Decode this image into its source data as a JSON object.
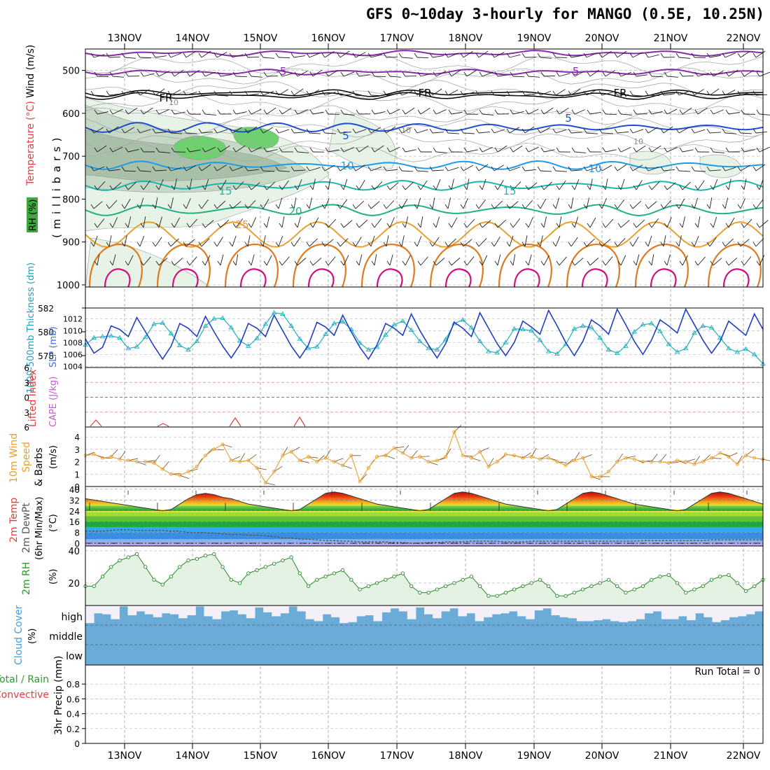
{
  "title": "GFS 0~10day 3-hourly for MANGO (0.5E, 10.25N)",
  "date_labels": [
    "13NOV",
    "14NOV",
    "15NOV",
    "16NOV",
    "17NOV",
    "18NOV",
    "19NOV",
    "20NOV",
    "21NOV",
    "22NOV"
  ],
  "run_total": "Run Total = 0",
  "colors": {
    "thickness": "#2040c0",
    "slp": "#20b0c0",
    "wind": "#e8a030",
    "rh_line": "#2a8a2a",
    "cloud": "#6aabd8",
    "temp": "#e04040",
    "dew": "#555555"
  },
  "chart_data": [
    {
      "type": "heatmap",
      "panel": "sounding",
      "ylabels": [
        "Wind (m/s)",
        "Temperature (°C)",
        "RH (%)",
        "( m i l l i b a r s )"
      ],
      "yticks": [
        500,
        600,
        700,
        800,
        900,
        1000
      ],
      "contour_labels": [
        "-5",
        "-5",
        "FR",
        "FR",
        "FR",
        "5",
        "5",
        "10",
        "10",
        "15",
        "15",
        "20",
        "25",
        "10",
        "10",
        "10"
      ]
    },
    {
      "type": "line",
      "panel": "thickness_slp",
      "ylabel_left": "1000-500mb Thickness (dm)",
      "ylabel_right": "SLP (mb)",
      "ylim_left": [
        577,
        582
      ],
      "yticks_left": [
        578,
        580,
        582
      ],
      "ylim_right": [
        1003.8,
        1013.8
      ],
      "yticks_right": [
        1004,
        1006,
        1008,
        1010,
        1012
      ],
      "series": [
        {
          "name": "1000-500mb Thickness (dm)",
          "values": [
            579.4,
            578.2,
            578.7,
            580.5,
            580.2,
            579.6,
            581.2,
            580.0,
            578.8,
            577.7,
            578.8,
            580.7,
            580.3,
            579.6,
            581.3,
            580.0,
            578.8,
            577.8,
            578.9,
            580.7,
            580.3,
            579.6,
            581.4,
            580.1,
            578.8,
            577.8,
            578.9,
            580.8,
            580.4,
            579.7,
            581.4,
            580.0,
            578.7,
            577.7,
            578.9,
            580.7,
            580.3,
            579.7,
            581.5,
            580.1,
            578.9,
            577.8,
            579.0,
            580.8,
            580.3,
            579.6,
            581.6,
            580.3,
            579.0,
            578.0,
            579.1,
            580.9,
            580.4,
            579.8,
            581.8,
            580.5,
            579.1,
            578.0,
            579.2,
            581.0,
            580.5,
            579.8,
            581.9,
            580.6,
            579.2,
            578.1,
            579.3,
            581.0,
            580.5,
            579.9,
            581.9,
            580.6,
            579.3,
            578.2,
            579.2,
            580.9,
            580.3,
            579.7,
            581.5,
            580.2
          ]
        },
        {
          "name": "SLP (mb)",
          "values": [
            1007.6,
            1008.8,
            1009.0,
            1009.1,
            1008.8,
            1007.0,
            1007.3,
            1008.9,
            1011.1,
            1011.3,
            1009.5,
            1007.5,
            1006.8,
            1008.2,
            1010.8,
            1012.0,
            1012.1,
            1010.5,
            1008.3,
            1007.4,
            1008.7,
            1011.1,
            1013.0,
            1012.8,
            1010.8,
            1008.6,
            1007.0,
            1007.3,
            1009.4,
            1011.2,
            1011.5,
            1010.2,
            1007.9,
            1006.8,
            1007.2,
            1009.3,
            1011.0,
            1011.6,
            1010.1,
            1008.2,
            1007.0,
            1006.8,
            1008.5,
            1011.2,
            1011.8,
            1010.5,
            1008.2,
            1006.5,
            1006.3,
            1008.0,
            1010.3,
            1010.2,
            1010.0,
            1008.4,
            1006.5,
            1006.1,
            1007.7,
            1010.3,
            1010.8,
            1010.5,
            1008.8,
            1006.8,
            1006.2,
            1007.4,
            1009.8,
            1011.0,
            1011.2,
            1009.9,
            1007.7,
            1006.4,
            1007.0,
            1009.6,
            1010.8,
            1010.5,
            1008.8,
            1007.0,
            1006.4,
            1006.9,
            1006.0,
            1004.4
          ]
        }
      ]
    },
    {
      "type": "line",
      "panel": "cape_li",
      "ylabel_left": "Lifted Index",
      "ylabel_right": "CAPE (J/kg)",
      "ylim": [
        -6,
        6
      ],
      "yticks": [
        -6,
        -3,
        0,
        3,
        6
      ],
      "tick_labels": [
        "6",
        "3",
        "0",
        "3",
        "6"
      ]
    },
    {
      "type": "line",
      "panel": "wind10m",
      "ylabel": "10m Wind Speed & Barbs (m/s)",
      "ylim": [
        0,
        4.8
      ],
      "yticks": [
        0,
        1,
        2,
        3,
        4
      ],
      "series": [
        {
          "name": "10m Wind Speed",
          "values": [
            2.5,
            2.6,
            2.3,
            2.4,
            2.2,
            2.1,
            2.0,
            2.0,
            1.9,
            1.4,
            1.0,
            0.9,
            1.2,
            1.6,
            2.5,
            3.0,
            3.4,
            2.1,
            2.0,
            2.1,
            1.5,
            0.3,
            1.2,
            2.5,
            2.8,
            2.1,
            2.4,
            2.0,
            2.3,
            2.0,
            1.7,
            2.5,
            0.4,
            1.5,
            2.4,
            2.5,
            3.1,
            2.7,
            2.3,
            2.4,
            2.0,
            2.1,
            2.4,
            4.4,
            2.5,
            2.3,
            2.8,
            1.6,
            2.0,
            2.6,
            2.5,
            2.3,
            2.4,
            2.2,
            2.3,
            2.0,
            1.7,
            2.1,
            2.3,
            0.8,
            0.8,
            1.2,
            2.0,
            2.3,
            2.2,
            2.0,
            2.0,
            2.0,
            1.9,
            2.1,
            2.0,
            1.8,
            2.0,
            2.3,
            2.7,
            2.4,
            1.8,
            2.5,
            2.3,
            2.2
          ]
        }
      ]
    },
    {
      "type": "area",
      "panel": "temp2m",
      "ylabel": "2m Temp 2m DewPt (6hr Min/Max) (°C)",
      "ylim": [
        -2,
        42
      ],
      "yticks": [
        0,
        8,
        16,
        24,
        32,
        40
      ],
      "series": [
        {
          "name": "2m Temp",
          "values": [
            33,
            32,
            31,
            30,
            29,
            28,
            27,
            26,
            25,
            24,
            25,
            29,
            33,
            36,
            37,
            36,
            34,
            33,
            31,
            29,
            28,
            27,
            26,
            25,
            24,
            25,
            29,
            33,
            37,
            38,
            37,
            35,
            33,
            31,
            29,
            28,
            27,
            26,
            25,
            24,
            25,
            29,
            33,
            37,
            38,
            37,
            35,
            33,
            31,
            29,
            28,
            27,
            26,
            25,
            24,
            25,
            29,
            33,
            37,
            38,
            37,
            35,
            33,
            31,
            29,
            28,
            27,
            26,
            25,
            24,
            25,
            29,
            33,
            37,
            38,
            37,
            35,
            33,
            31,
            29
          ]
        },
        {
          "name": "2m DewPt",
          "values": [
            9,
            9,
            9,
            9.5,
            10,
            10,
            9.5,
            9.5,
            9.5,
            9.5,
            9,
            9,
            8,
            8,
            8,
            7.5,
            7,
            6.5,
            6.5,
            6,
            6,
            5.5,
            5,
            4,
            4,
            3,
            3,
            2.5,
            2,
            2,
            1.5,
            1.5,
            1,
            1,
            1,
            1,
            0.5,
            0.5,
            0,
            0,
            0.5,
            0.5,
            1,
            1,
            1,
            1.5,
            1.5,
            1.5,
            1.5,
            1,
            1,
            1,
            1.5,
            1.5,
            1.5,
            1.5,
            1.5,
            1.5,
            1.5,
            1.5,
            1.5,
            1.5,
            1.5,
            1.5,
            1.5,
            2,
            2,
            2,
            2,
            2,
            2,
            2,
            2,
            2.5,
            2.5,
            2.5,
            2.5,
            2.5,
            2.5,
            2.5
          ]
        }
      ]
    },
    {
      "type": "area",
      "panel": "rh2m",
      "ylabel": "2m RH (%)",
      "ylim": [
        6,
        43
      ],
      "yticks": [
        20,
        40
      ],
      "series": [
        {
          "name": "2m RH",
          "values": [
            18,
            18,
            24,
            30,
            34,
            36,
            38,
            30,
            22,
            19,
            24,
            30,
            34,
            35,
            37,
            38,
            30,
            22,
            20,
            26,
            28,
            30,
            32,
            34,
            36,
            26,
            18,
            22,
            24,
            26,
            28,
            22,
            16,
            18,
            20,
            22,
            24,
            26,
            18,
            14,
            14,
            16,
            18,
            20,
            22,
            24,
            18,
            12,
            12,
            14,
            16,
            18,
            20,
            22,
            18,
            12,
            12,
            14,
            16,
            18,
            20,
            22,
            18,
            14,
            16,
            18,
            22,
            24,
            25,
            20,
            14,
            16,
            18,
            22,
            24,
            25,
            20,
            15,
            18,
            22
          ]
        }
      ]
    },
    {
      "type": "bar",
      "panel": "cloud",
      "ylabel": "Cloud Cover (%)",
      "yticks_labels": [
        "high",
        "middle",
        "low"
      ],
      "series": [
        {
          "name": "high",
          "values": [
            10,
            60,
            55,
            30,
            95,
            50,
            70,
            55,
            40,
            60,
            55,
            35,
            50,
            95,
            45,
            30,
            70,
            75,
            55,
            35,
            90,
            65,
            45,
            60,
            95,
            70,
            30,
            20,
            55,
            40,
            10,
            15,
            45,
            50,
            20,
            65,
            85,
            70,
            30,
            90,
            55,
            35,
            70,
            85,
            45,
            60,
            20,
            40,
            55,
            60,
            70,
            45,
            30,
            75,
            85,
            50,
            40,
            35,
            20,
            20,
            25,
            30,
            20,
            15,
            20,
            30,
            60,
            70,
            30,
            30,
            45,
            25,
            60,
            40,
            15,
            25,
            40,
            45,
            55,
            70
          ]
        }
      ]
    },
    {
      "type": "bar",
      "panel": "precip",
      "ylabel": "3hr Precip (mm)",
      "ylabel_left": "Total / Rain",
      "ylabel_left2": "Convective",
      "ylim": [
        0,
        1
      ],
      "yticks": [
        0,
        0.2,
        0.4,
        0.6,
        0.8
      ],
      "tick_labels": [
        "0",
        "0.2",
        "0.4",
        "0.6",
        "0.8"
      ],
      "values": []
    }
  ]
}
